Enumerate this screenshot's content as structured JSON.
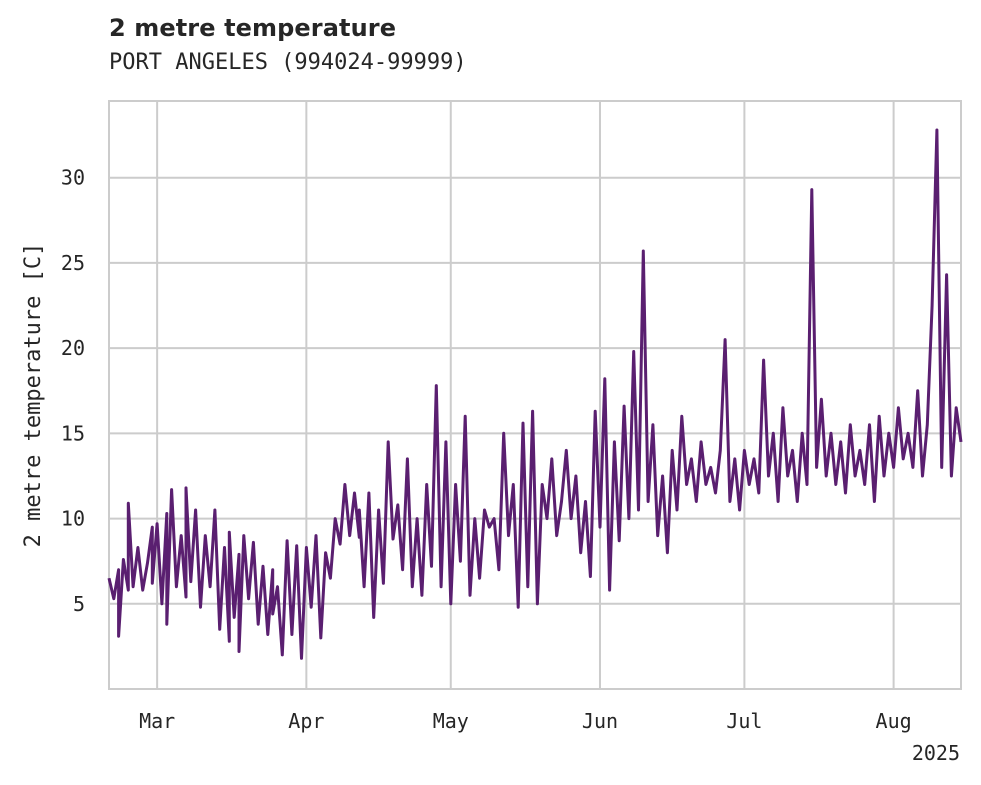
{
  "chart_data": {
    "type": "line",
    "title": "2 metre temperature",
    "subtitle": "PORT ANGELES (994024-99999)",
    "ylabel": "2 metre temperature [C]",
    "xlabel": "",
    "year_label": "2025",
    "x_range": [
      "2025-02-19",
      "2025-08-15"
    ],
    "ylim": [
      0,
      34.5
    ],
    "yticks": [
      5,
      10,
      15,
      20,
      25,
      30
    ],
    "xticks": [
      {
        "date": "2025-03-01",
        "label": "Mar"
      },
      {
        "date": "2025-04-01",
        "label": "Apr"
      },
      {
        "date": "2025-05-01",
        "label": "May"
      },
      {
        "date": "2025-06-01",
        "label": "Jun"
      },
      {
        "date": "2025-07-01",
        "label": "Jul"
      },
      {
        "date": "2025-08-01",
        "label": "Aug"
      }
    ],
    "grid": true,
    "line_color": "#5a1f70",
    "series": [
      {
        "name": "",
        "points": [
          [
            "2025-02-19",
            6.5
          ],
          [
            "2025-02-20",
            5.3
          ],
          [
            "2025-02-21",
            7.0
          ],
          [
            "2025-02-21",
            3.1
          ],
          [
            "2025-02-22",
            7.6
          ],
          [
            "2025-02-23",
            5.8
          ],
          [
            "2025-02-23",
            10.9
          ],
          [
            "2025-02-24",
            6.0
          ],
          [
            "2025-02-25",
            8.3
          ],
          [
            "2025-02-26",
            5.8
          ],
          [
            "2025-02-27",
            7.4
          ],
          [
            "2025-02-28",
            9.5
          ],
          [
            "2025-02-28",
            6.2
          ],
          [
            "2025-03-01",
            9.7
          ],
          [
            "2025-03-02",
            5.0
          ],
          [
            "2025-03-03",
            10.3
          ],
          [
            "2025-03-03",
            3.8
          ],
          [
            "2025-03-04",
            11.7
          ],
          [
            "2025-03-05",
            6.0
          ],
          [
            "2025-03-06",
            9.0
          ],
          [
            "2025-03-07",
            5.4
          ],
          [
            "2025-03-07",
            11.8
          ],
          [
            "2025-03-08",
            6.3
          ],
          [
            "2025-03-09",
            10.5
          ],
          [
            "2025-03-10",
            4.8
          ],
          [
            "2025-03-11",
            9.0
          ],
          [
            "2025-03-12",
            6.0
          ],
          [
            "2025-03-13",
            10.5
          ],
          [
            "2025-03-14",
            3.5
          ],
          [
            "2025-03-15",
            8.3
          ],
          [
            "2025-03-16",
            2.8
          ],
          [
            "2025-03-16",
            9.2
          ],
          [
            "2025-03-17",
            4.2
          ],
          [
            "2025-03-18",
            7.9
          ],
          [
            "2025-03-18",
            2.2
          ],
          [
            "2025-03-19",
            9.0
          ],
          [
            "2025-03-20",
            5.3
          ],
          [
            "2025-03-21",
            8.6
          ],
          [
            "2025-03-22",
            3.8
          ],
          [
            "2025-03-23",
            7.2
          ],
          [
            "2025-03-24",
            3.2
          ],
          [
            "2025-03-25",
            7.0
          ],
          [
            "2025-03-25",
            4.4
          ],
          [
            "2025-03-26",
            6.0
          ],
          [
            "2025-03-27",
            2.0
          ],
          [
            "2025-03-28",
            8.7
          ],
          [
            "2025-03-29",
            3.2
          ],
          [
            "2025-03-30",
            8.4
          ],
          [
            "2025-03-31",
            1.8
          ],
          [
            "2025-04-01",
            8.3
          ],
          [
            "2025-04-02",
            4.8
          ],
          [
            "2025-04-03",
            9.0
          ],
          [
            "2025-04-04",
            3.0
          ],
          [
            "2025-04-05",
            8.0
          ],
          [
            "2025-04-06",
            6.5
          ],
          [
            "2025-04-07",
            10.0
          ],
          [
            "2025-04-08",
            8.5
          ],
          [
            "2025-04-09",
            12.0
          ],
          [
            "2025-04-10",
            9.0
          ],
          [
            "2025-04-11",
            11.5
          ],
          [
            "2025-04-12",
            8.9
          ],
          [
            "2025-04-12",
            10.5
          ],
          [
            "2025-04-13",
            6.0
          ],
          [
            "2025-04-14",
            11.5
          ],
          [
            "2025-04-15",
            4.2
          ],
          [
            "2025-04-16",
            10.5
          ],
          [
            "2025-04-17",
            6.2
          ],
          [
            "2025-04-18",
            14.5
          ],
          [
            "2025-04-19",
            8.8
          ],
          [
            "2025-04-20",
            10.8
          ],
          [
            "2025-04-21",
            7.0
          ],
          [
            "2025-04-22",
            13.5
          ],
          [
            "2025-04-23",
            6.0
          ],
          [
            "2025-04-24",
            10.0
          ],
          [
            "2025-04-25",
            5.5
          ],
          [
            "2025-04-26",
            12.0
          ],
          [
            "2025-04-27",
            7.2
          ],
          [
            "2025-04-28",
            17.8
          ],
          [
            "2025-04-29",
            6.0
          ],
          [
            "2025-04-30",
            14.5
          ],
          [
            "2025-05-01",
            5.0
          ],
          [
            "2025-05-02",
            12.0
          ],
          [
            "2025-05-03",
            7.5
          ],
          [
            "2025-05-04",
            16.0
          ],
          [
            "2025-05-05",
            5.5
          ],
          [
            "2025-05-06",
            10.0
          ],
          [
            "2025-05-07",
            6.5
          ],
          [
            "2025-05-08",
            10.5
          ],
          [
            "2025-05-09",
            9.5
          ],
          [
            "2025-05-10",
            10.0
          ],
          [
            "2025-05-11",
            7.0
          ],
          [
            "2025-05-12",
            15.0
          ],
          [
            "2025-05-13",
            9.0
          ],
          [
            "2025-05-14",
            12.0
          ],
          [
            "2025-05-15",
            4.8
          ],
          [
            "2025-05-16",
            15.6
          ],
          [
            "2025-05-17",
            6.0
          ],
          [
            "2025-05-18",
            16.3
          ],
          [
            "2025-05-19",
            5.0
          ],
          [
            "2025-05-20",
            12.0
          ],
          [
            "2025-05-21",
            10.0
          ],
          [
            "2025-05-22",
            13.5
          ],
          [
            "2025-05-23",
            9.0
          ],
          [
            "2025-05-24",
            11.0
          ],
          [
            "2025-05-25",
            14.0
          ],
          [
            "2025-05-26",
            10.0
          ],
          [
            "2025-05-27",
            12.5
          ],
          [
            "2025-05-28",
            8.0
          ],
          [
            "2025-05-29",
            11.0
          ],
          [
            "2025-05-30",
            6.6
          ],
          [
            "2025-05-31",
            16.3
          ],
          [
            "2025-06-01",
            9.5
          ],
          [
            "2025-06-02",
            18.2
          ],
          [
            "2025-06-03",
            5.8
          ],
          [
            "2025-06-04",
            14.5
          ],
          [
            "2025-06-05",
            8.7
          ],
          [
            "2025-06-06",
            16.6
          ],
          [
            "2025-06-07",
            10.0
          ],
          [
            "2025-06-08",
            19.8
          ],
          [
            "2025-06-09",
            10.5
          ],
          [
            "2025-06-10",
            25.7
          ],
          [
            "2025-06-11",
            11.0
          ],
          [
            "2025-06-12",
            15.5
          ],
          [
            "2025-06-13",
            9.0
          ],
          [
            "2025-06-14",
            12.5
          ],
          [
            "2025-06-15",
            8.0
          ],
          [
            "2025-06-16",
            14.0
          ],
          [
            "2025-06-17",
            10.5
          ],
          [
            "2025-06-18",
            16.0
          ],
          [
            "2025-06-19",
            12.0
          ],
          [
            "2025-06-20",
            13.5
          ],
          [
            "2025-06-21",
            11.0
          ],
          [
            "2025-06-22",
            14.5
          ],
          [
            "2025-06-23",
            12.0
          ],
          [
            "2025-06-24",
            13.0
          ],
          [
            "2025-06-25",
            11.5
          ],
          [
            "2025-06-26",
            14.0
          ],
          [
            "2025-06-27",
            20.5
          ],
          [
            "2025-06-28",
            11.0
          ],
          [
            "2025-06-29",
            13.5
          ],
          [
            "2025-06-30",
            10.5
          ],
          [
            "2025-07-01",
            14.0
          ],
          [
            "2025-07-02",
            12.0
          ],
          [
            "2025-07-03",
            13.5
          ],
          [
            "2025-07-04",
            11.5
          ],
          [
            "2025-07-05",
            19.3
          ],
          [
            "2025-07-06",
            12.5
          ],
          [
            "2025-07-07",
            15.0
          ],
          [
            "2025-07-08",
            11.0
          ],
          [
            "2025-07-09",
            16.5
          ],
          [
            "2025-07-10",
            12.5
          ],
          [
            "2025-07-11",
            14.0
          ],
          [
            "2025-07-12",
            11.0
          ],
          [
            "2025-07-13",
            15.0
          ],
          [
            "2025-07-14",
            12.0
          ],
          [
            "2025-07-15",
            29.3
          ],
          [
            "2025-07-16",
            13.0
          ],
          [
            "2025-07-17",
            17.0
          ],
          [
            "2025-07-18",
            12.5
          ],
          [
            "2025-07-19",
            15.0
          ],
          [
            "2025-07-20",
            12.0
          ],
          [
            "2025-07-21",
            14.5
          ],
          [
            "2025-07-22",
            11.5
          ],
          [
            "2025-07-23",
            15.5
          ],
          [
            "2025-07-24",
            12.5
          ],
          [
            "2025-07-25",
            14.0
          ],
          [
            "2025-07-26",
            12.0
          ],
          [
            "2025-07-27",
            15.5
          ],
          [
            "2025-07-28",
            11.0
          ],
          [
            "2025-07-29",
            16.0
          ],
          [
            "2025-07-30",
            12.5
          ],
          [
            "2025-07-31",
            15.0
          ],
          [
            "2025-08-01",
            13.0
          ],
          [
            "2025-08-02",
            16.5
          ],
          [
            "2025-08-03",
            13.5
          ],
          [
            "2025-08-04",
            15.0
          ],
          [
            "2025-08-05",
            13.0
          ],
          [
            "2025-08-06",
            17.5
          ],
          [
            "2025-08-07",
            12.5
          ],
          [
            "2025-08-08",
            15.5
          ],
          [
            "2025-08-09",
            22.5
          ],
          [
            "2025-08-10",
            32.8
          ],
          [
            "2025-08-11",
            13.0
          ],
          [
            "2025-08-12",
            24.3
          ],
          [
            "2025-08-13",
            12.5
          ],
          [
            "2025-08-14",
            16.5
          ],
          [
            "2025-08-15",
            14.5
          ]
        ]
      }
    ]
  }
}
